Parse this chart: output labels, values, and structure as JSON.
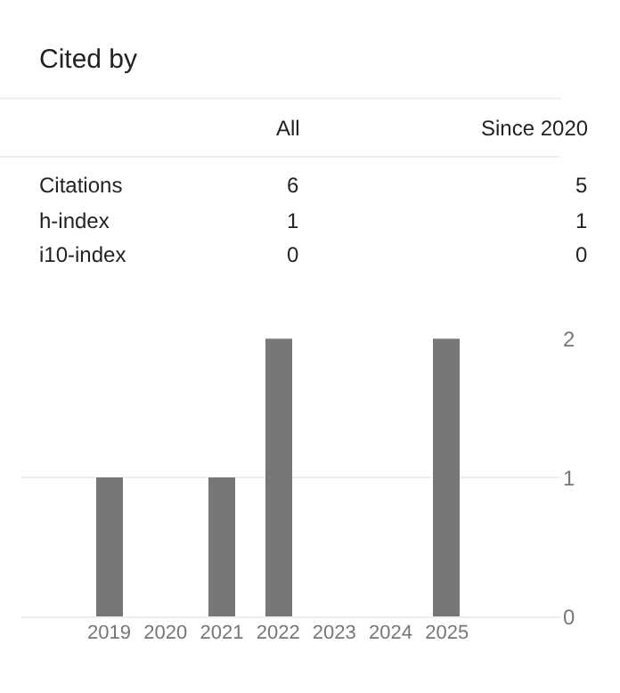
{
  "chart_data": [
    {
      "type": "other",
      "title": "Cited by",
      "annotations": [
        "All",
        "Since 2020",
        "Citations",
        "6",
        "5",
        "h-index",
        "1",
        "1",
        "i10-index",
        "0",
        "0"
      ]
    },
    {
      "type": "bar",
      "categories": [
        "2019",
        "2020",
        "2021",
        "2022",
        "2023",
        "2024",
        "2025"
      ],
      "values": [
        1,
        0,
        1,
        2,
        0,
        0,
        2
      ],
      "color": "#777777",
      "ylim": [
        0,
        2
      ],
      "yticks": [
        0,
        1,
        2
      ],
      "grid": "y"
    }
  ]
}
